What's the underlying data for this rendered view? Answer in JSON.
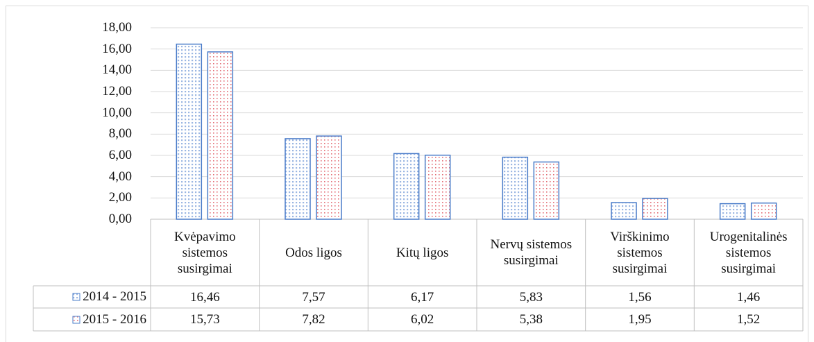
{
  "chart_data": {
    "type": "bar",
    "categories": [
      "Kvėpavimo sistemos susirgimai",
      "Odos ligos",
      "Kitų ligos",
      "Nervų sistemos susirgimai",
      "Virškinimo sistemos susirgimai",
      "Urogenitalinės sistemos susirgimai"
    ],
    "series": [
      {
        "name": "2014 - 2015",
        "color": "#4a7cc9",
        "values": [
          16.46,
          7.57,
          6.17,
          5.83,
          1.56,
          1.46
        ],
        "value_labels": [
          "16,46",
          "7,57",
          "6,17",
          "5,83",
          "1,56",
          "1,46"
        ]
      },
      {
        "name": "2015 - 2016",
        "color": "#e05c66",
        "values": [
          15.73,
          7.82,
          6.02,
          5.38,
          1.95,
          1.52
        ],
        "value_labels": [
          "15,73",
          "7,82",
          "6,02",
          "5,38",
          "1,95",
          "1,52"
        ]
      }
    ],
    "ylim": [
      0,
      18
    ],
    "yticks": [
      {
        "value": 0,
        "label": "0,00"
      },
      {
        "value": 2,
        "label": "2,00"
      },
      {
        "value": 4,
        "label": "4,00"
      },
      {
        "value": 6,
        "label": "6,00"
      },
      {
        "value": 8,
        "label": "8,00"
      },
      {
        "value": 10,
        "label": "10,00"
      },
      {
        "value": 12,
        "label": "12,00"
      },
      {
        "value": 14,
        "label": "14,00"
      },
      {
        "value": 16,
        "label": "16,00"
      },
      {
        "value": 18,
        "label": "18,00"
      }
    ],
    "grid": true
  }
}
